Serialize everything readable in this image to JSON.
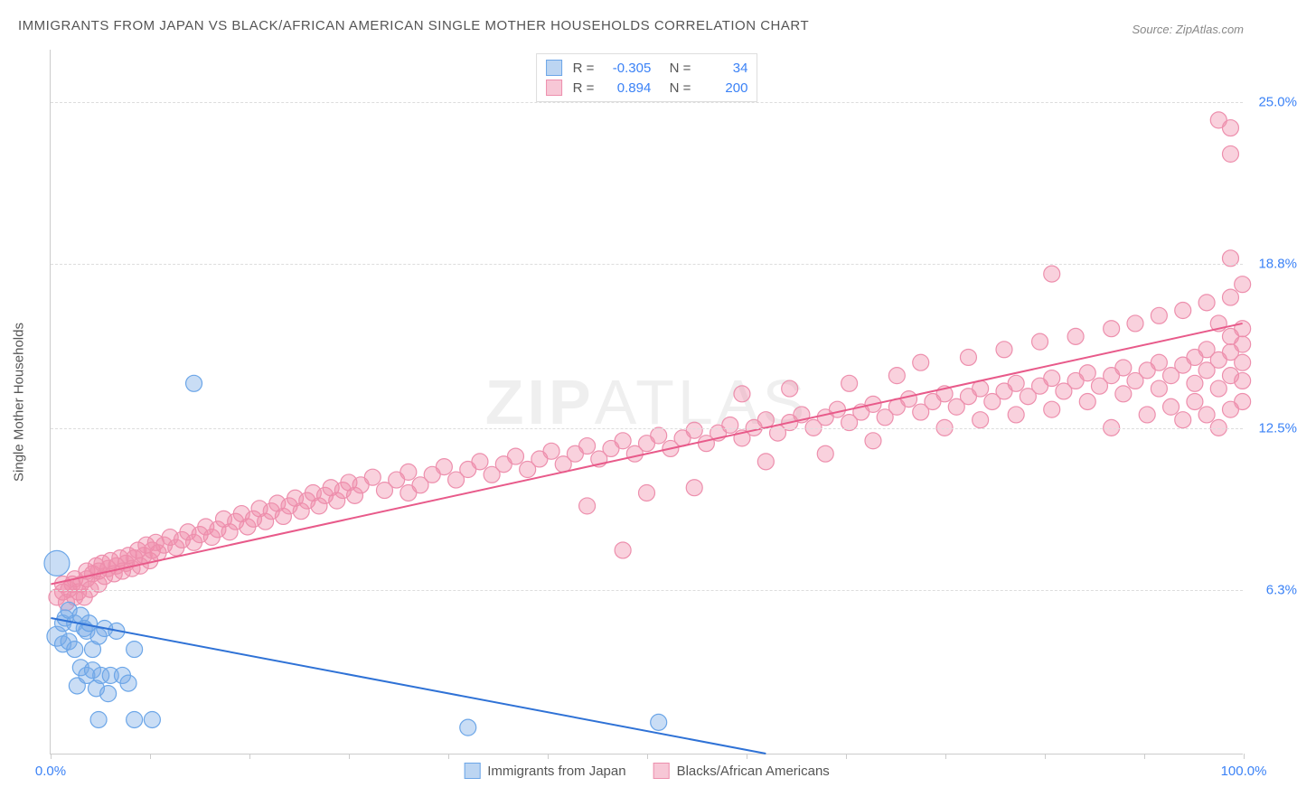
{
  "title": "IMMIGRANTS FROM JAPAN VS BLACK/AFRICAN AMERICAN SINGLE MOTHER HOUSEHOLDS CORRELATION CHART",
  "source": "Source: ZipAtlas.com",
  "watermark_bold": "ZIP",
  "watermark_light": "ATLAS",
  "y_axis_label": "Single Mother Households",
  "chart": {
    "type": "scatter",
    "background_color": "#ffffff",
    "grid_color": "#dddddd",
    "axis_color": "#cccccc",
    "tick_label_color": "#3b82f6",
    "xlim": [
      0,
      100
    ],
    "ylim": [
      0,
      27
    ],
    "x_ticks_minor": [
      0,
      8.33,
      16.67,
      25,
      33.33,
      41.67,
      50,
      58.33,
      66.67,
      75,
      83.33,
      91.67,
      100
    ],
    "x_tick_labels": [
      {
        "pos": 0,
        "label": "0.0%"
      },
      {
        "pos": 100,
        "label": "100.0%"
      }
    ],
    "y_ticks": [
      {
        "pos": 6.3,
        "label": "6.3%"
      },
      {
        "pos": 12.5,
        "label": "12.5%"
      },
      {
        "pos": 18.8,
        "label": "18.8%"
      },
      {
        "pos": 25.0,
        "label": "25.0%"
      }
    ]
  },
  "series": [
    {
      "id": "japan",
      "label": "Immigrants from Japan",
      "color_fill": "rgba(120,170,230,0.40)",
      "color_stroke": "#6ca6e8",
      "swatch_fill": "#bcd5f2",
      "swatch_border": "#6ca6e8",
      "marker_radius": 9,
      "r_value": "-0.305",
      "n_value": "34",
      "trend": {
        "x1": 0,
        "y1": 5.2,
        "x2": 60,
        "y2": 0,
        "color": "#2f72d6",
        "width": 2
      },
      "points": [
        [
          0.5,
          4.5,
          11
        ],
        [
          0.5,
          7.3,
          14
        ],
        [
          1,
          5.0,
          9
        ],
        [
          1,
          4.2,
          9
        ],
        [
          1.2,
          5.2,
          9
        ],
        [
          1.5,
          5.5,
          9
        ],
        [
          1.5,
          4.3,
          9
        ],
        [
          2,
          5.0,
          9
        ],
        [
          2,
          4.0,
          9
        ],
        [
          2.2,
          2.6,
          9
        ],
        [
          2.5,
          3.3,
          9
        ],
        [
          2.5,
          5.3,
          9
        ],
        [
          2.8,
          4.8,
          9
        ],
        [
          3,
          3.0,
          9
        ],
        [
          3,
          4.7,
          9
        ],
        [
          3.2,
          5.0,
          9
        ],
        [
          3.5,
          4.0,
          9
        ],
        [
          3.5,
          3.2,
          9
        ],
        [
          3.8,
          2.5,
          9
        ],
        [
          4,
          4.5,
          9
        ],
        [
          4,
          1.3,
          9
        ],
        [
          4.2,
          3.0,
          9
        ],
        [
          4.5,
          4.8,
          9
        ],
        [
          4.8,
          2.3,
          9
        ],
        [
          5,
          3.0,
          9
        ],
        [
          5.5,
          4.7,
          9
        ],
        [
          6,
          3.0,
          9
        ],
        [
          6.5,
          2.7,
          9
        ],
        [
          7,
          1.3,
          9
        ],
        [
          7,
          4.0,
          9
        ],
        [
          8.5,
          1.3,
          9
        ],
        [
          12,
          14.2,
          9
        ],
        [
          35,
          1.0,
          9
        ],
        [
          51,
          1.2,
          9
        ]
      ]
    },
    {
      "id": "black",
      "label": "Blacks/African Americans",
      "color_fill": "rgba(240,140,170,0.40)",
      "color_stroke": "#ed8fad",
      "swatch_fill": "#f7c7d6",
      "swatch_border": "#ed8fad",
      "marker_radius": 9,
      "r_value": "0.894",
      "n_value": "200",
      "trend": {
        "x1": 0,
        "y1": 6.5,
        "x2": 100,
        "y2": 16.5,
        "color": "#e85a8a",
        "width": 2
      },
      "points": [
        [
          0.5,
          6.0,
          9
        ],
        [
          1,
          6.2,
          9
        ],
        [
          1,
          6.5,
          9
        ],
        [
          1.3,
          5.8,
          9
        ],
        [
          1.5,
          6.3,
          9
        ],
        [
          1.8,
          6.5,
          9
        ],
        [
          2,
          6.0,
          9
        ],
        [
          2,
          6.7,
          9
        ],
        [
          2.3,
          6.2,
          9
        ],
        [
          2.5,
          6.5,
          9
        ],
        [
          2.8,
          6.0,
          9
        ],
        [
          3,
          6.7,
          9
        ],
        [
          3,
          7.0,
          9
        ],
        [
          3.3,
          6.3,
          9
        ],
        [
          3.5,
          6.9,
          9
        ],
        [
          3.8,
          7.2,
          9
        ],
        [
          4,
          6.5,
          9
        ],
        [
          4,
          7.0,
          9
        ],
        [
          4.3,
          7.3,
          9
        ],
        [
          4.5,
          6.8,
          9
        ],
        [
          4.8,
          7.1,
          9
        ],
        [
          5,
          7.4,
          9
        ],
        [
          5.3,
          6.9,
          9
        ],
        [
          5.5,
          7.2,
          9
        ],
        [
          5.8,
          7.5,
          9
        ],
        [
          6,
          7.0,
          9
        ],
        [
          6.3,
          7.3,
          9
        ],
        [
          6.5,
          7.6,
          9
        ],
        [
          6.8,
          7.1,
          9
        ],
        [
          7,
          7.5,
          9
        ],
        [
          7.3,
          7.8,
          9
        ],
        [
          7.5,
          7.2,
          9
        ],
        [
          7.8,
          7.6,
          9
        ],
        [
          8,
          8.0,
          9
        ],
        [
          8.3,
          7.4,
          9
        ],
        [
          8.5,
          7.8,
          9
        ],
        [
          8.8,
          8.1,
          9
        ],
        [
          9,
          7.7,
          9
        ],
        [
          9.5,
          8.0,
          9
        ],
        [
          10,
          8.3,
          9
        ],
        [
          10.5,
          7.9,
          9
        ],
        [
          11,
          8.2,
          9
        ],
        [
          11.5,
          8.5,
          9
        ],
        [
          12,
          8.1,
          9
        ],
        [
          12.5,
          8.4,
          9
        ],
        [
          13,
          8.7,
          9
        ],
        [
          13.5,
          8.3,
          9
        ],
        [
          14,
          8.6,
          9
        ],
        [
          14.5,
          9.0,
          9
        ],
        [
          15,
          8.5,
          9
        ],
        [
          15.5,
          8.9,
          9
        ],
        [
          16,
          9.2,
          9
        ],
        [
          16.5,
          8.7,
          9
        ],
        [
          17,
          9.0,
          9
        ],
        [
          17.5,
          9.4,
          9
        ],
        [
          18,
          8.9,
          9
        ],
        [
          18.5,
          9.3,
          9
        ],
        [
          19,
          9.6,
          9
        ],
        [
          19.5,
          9.1,
          9
        ],
        [
          20,
          9.5,
          9
        ],
        [
          20.5,
          9.8,
          9
        ],
        [
          21,
          9.3,
          9
        ],
        [
          21.5,
          9.7,
          9
        ],
        [
          22,
          10.0,
          9
        ],
        [
          22.5,
          9.5,
          9
        ],
        [
          23,
          9.9,
          9
        ],
        [
          23.5,
          10.2,
          9
        ],
        [
          24,
          9.7,
          9
        ],
        [
          24.5,
          10.1,
          9
        ],
        [
          25,
          10.4,
          9
        ],
        [
          25.5,
          9.9,
          9
        ],
        [
          26,
          10.3,
          9
        ],
        [
          27,
          10.6,
          9
        ],
        [
          28,
          10.1,
          9
        ],
        [
          29,
          10.5,
          9
        ],
        [
          30,
          10.0,
          9
        ],
        [
          30,
          10.8,
          9
        ],
        [
          31,
          10.3,
          9
        ],
        [
          32,
          10.7,
          9
        ],
        [
          33,
          11.0,
          9
        ],
        [
          34,
          10.5,
          9
        ],
        [
          35,
          10.9,
          9
        ],
        [
          36,
          11.2,
          9
        ],
        [
          37,
          10.7,
          9
        ],
        [
          38,
          11.1,
          9
        ],
        [
          39,
          11.4,
          9
        ],
        [
          40,
          10.9,
          9
        ],
        [
          41,
          11.3,
          9
        ],
        [
          42,
          11.6,
          9
        ],
        [
          43,
          11.1,
          9
        ],
        [
          44,
          11.5,
          9
        ],
        [
          45,
          11.8,
          9
        ],
        [
          45,
          9.5,
          9
        ],
        [
          46,
          11.3,
          9
        ],
        [
          47,
          11.7,
          9
        ],
        [
          48,
          12.0,
          9
        ],
        [
          48,
          7.8,
          9
        ],
        [
          49,
          11.5,
          9
        ],
        [
          50,
          11.9,
          9
        ],
        [
          50,
          10.0,
          9
        ],
        [
          51,
          12.2,
          9
        ],
        [
          52,
          11.7,
          9
        ],
        [
          53,
          12.1,
          9
        ],
        [
          54,
          12.4,
          9
        ],
        [
          54,
          10.2,
          9
        ],
        [
          55,
          11.9,
          9
        ],
        [
          56,
          12.3,
          9
        ],
        [
          57,
          12.6,
          9
        ],
        [
          58,
          12.1,
          9
        ],
        [
          58,
          13.8,
          9
        ],
        [
          59,
          12.5,
          9
        ],
        [
          60,
          12.8,
          9
        ],
        [
          60,
          11.2,
          9
        ],
        [
          61,
          12.3,
          9
        ],
        [
          62,
          12.7,
          9
        ],
        [
          62,
          14.0,
          9
        ],
        [
          63,
          13.0,
          9
        ],
        [
          64,
          12.5,
          9
        ],
        [
          65,
          12.9,
          9
        ],
        [
          65,
          11.5,
          9
        ],
        [
          66,
          13.2,
          9
        ],
        [
          67,
          12.7,
          9
        ],
        [
          67,
          14.2,
          9
        ],
        [
          68,
          13.1,
          9
        ],
        [
          69,
          13.4,
          9
        ],
        [
          69,
          12.0,
          9
        ],
        [
          70,
          12.9,
          9
        ],
        [
          71,
          13.3,
          9
        ],
        [
          71,
          14.5,
          9
        ],
        [
          72,
          13.6,
          9
        ],
        [
          73,
          13.1,
          9
        ],
        [
          73,
          15.0,
          9
        ],
        [
          74,
          13.5,
          9
        ],
        [
          75,
          13.8,
          9
        ],
        [
          75,
          12.5,
          9
        ],
        [
          76,
          13.3,
          9
        ],
        [
          77,
          13.7,
          9
        ],
        [
          77,
          15.2,
          9
        ],
        [
          78,
          14.0,
          9
        ],
        [
          78,
          12.8,
          9
        ],
        [
          79,
          13.5,
          9
        ],
        [
          80,
          13.9,
          9
        ],
        [
          80,
          15.5,
          9
        ],
        [
          81,
          14.2,
          9
        ],
        [
          81,
          13.0,
          9
        ],
        [
          82,
          13.7,
          9
        ],
        [
          83,
          14.1,
          9
        ],
        [
          83,
          15.8,
          9
        ],
        [
          84,
          14.4,
          9
        ],
        [
          84,
          13.2,
          9
        ],
        [
          84,
          18.4,
          9
        ],
        [
          85,
          13.9,
          9
        ],
        [
          86,
          14.3,
          9
        ],
        [
          86,
          16.0,
          9
        ],
        [
          87,
          14.6,
          9
        ],
        [
          87,
          13.5,
          9
        ],
        [
          88,
          14.1,
          9
        ],
        [
          89,
          14.5,
          9
        ],
        [
          89,
          16.3,
          9
        ],
        [
          89,
          12.5,
          9
        ],
        [
          90,
          14.8,
          9
        ],
        [
          90,
          13.8,
          9
        ],
        [
          91,
          14.3,
          9
        ],
        [
          91,
          16.5,
          9
        ],
        [
          92,
          14.7,
          9
        ],
        [
          92,
          13.0,
          9
        ],
        [
          93,
          15.0,
          9
        ],
        [
          93,
          16.8,
          9
        ],
        [
          93,
          14.0,
          9
        ],
        [
          94,
          14.5,
          9
        ],
        [
          94,
          13.3,
          9
        ],
        [
          95,
          14.9,
          9
        ],
        [
          95,
          17.0,
          9
        ],
        [
          95,
          12.8,
          9
        ],
        [
          96,
          15.2,
          9
        ],
        [
          96,
          14.2,
          9
        ],
        [
          96,
          13.5,
          9
        ],
        [
          97,
          14.7,
          9
        ],
        [
          97,
          17.3,
          9
        ],
        [
          97,
          15.5,
          9
        ],
        [
          97,
          13.0,
          9
        ],
        [
          98,
          15.1,
          9
        ],
        [
          98,
          14.0,
          9
        ],
        [
          98,
          16.5,
          9
        ],
        [
          98,
          24.3,
          9
        ],
        [
          98,
          12.5,
          9
        ],
        [
          99,
          15.4,
          9
        ],
        [
          99,
          17.5,
          9
        ],
        [
          99,
          14.5,
          9
        ],
        [
          99,
          24.0,
          9
        ],
        [
          99,
          13.2,
          9
        ],
        [
          99,
          19.0,
          9
        ],
        [
          99,
          16.0,
          9
        ],
        [
          99,
          23.0,
          9
        ],
        [
          100,
          15.0,
          9
        ],
        [
          100,
          14.3,
          9
        ],
        [
          100,
          18.0,
          9
        ],
        [
          100,
          13.5,
          9
        ],
        [
          100,
          16.3,
          9
        ],
        [
          100,
          15.7,
          9
        ]
      ]
    }
  ],
  "legend_bottom": [
    {
      "series": 0
    },
    {
      "series": 1
    }
  ]
}
